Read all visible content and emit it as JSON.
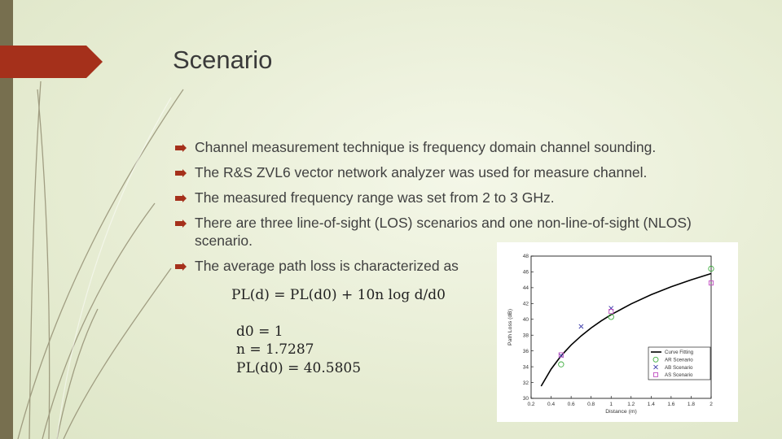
{
  "slide": {
    "title": "Scenario",
    "bullets": [
      "Channel measurement technique is frequency domain channel sounding.",
      "The R&S ZVL6 vector network analyzer was used for measure channel.",
      "The measured frequency range was set from 2 to 3 GHz.",
      "There are three line-of-sight (LOS) scenarios and one non-line-of-sight (NLOS) scenario.",
      "The average path loss is characterized as"
    ],
    "formula_lines": [
      "PL(d) = PL(d0) + 10n log d/d0",
      "d0 = 1",
      "n = 1.7287",
      "PL(d0) = 40.5805"
    ],
    "colors": {
      "accent": "#a5301b",
      "side_bar": "#776f4f",
      "bullet": "#a5301b"
    }
  },
  "chart_data": {
    "type": "scatter",
    "title": "",
    "xlabel": "Distance (m)",
    "ylabel": "Path Loss (dB)",
    "xlim": [
      0.2,
      2
    ],
    "ylim": [
      30,
      48
    ],
    "xticks": [
      "0.2",
      "0.4",
      "0.6",
      "0.8",
      "1",
      "1.2",
      "1.4",
      "1.6",
      "1.8",
      "2"
    ],
    "yticks": [
      "30",
      "32",
      "34",
      "36",
      "38",
      "40",
      "42",
      "44",
      "46",
      "48"
    ],
    "legend_position": "bottom-right",
    "grid": false,
    "series": [
      {
        "name": "Curve Fitting",
        "kind": "line",
        "color": "#000000",
        "x": [
          0.3,
          0.4,
          0.5,
          0.6,
          0.7,
          0.8,
          0.9,
          1.0,
          1.2,
          1.4,
          1.6,
          1.8,
          2.0
        ],
        "y": [
          31.54,
          33.7,
          35.38,
          36.75,
          37.9,
          38.91,
          39.79,
          40.58,
          41.95,
          43.11,
          44.11,
          45.0,
          45.79
        ]
      },
      {
        "name": "AR Scenario",
        "kind": "circle",
        "color": "#3fae3f",
        "x": [
          0.5,
          1.0,
          2.0
        ],
        "y": [
          34.3,
          40.3,
          46.4
        ]
      },
      {
        "name": "AB Scenario",
        "kind": "x",
        "color": "#3a3aa8",
        "x": [
          0.5,
          0.7,
          1.0
        ],
        "y": [
          35.4,
          39.1,
          41.4
        ]
      },
      {
        "name": "AS Scenario",
        "kind": "square",
        "color": "#c04ec0",
        "x": [
          0.5,
          1.0,
          2.0
        ],
        "y": [
          35.5,
          41.0,
          44.6
        ]
      }
    ]
  }
}
